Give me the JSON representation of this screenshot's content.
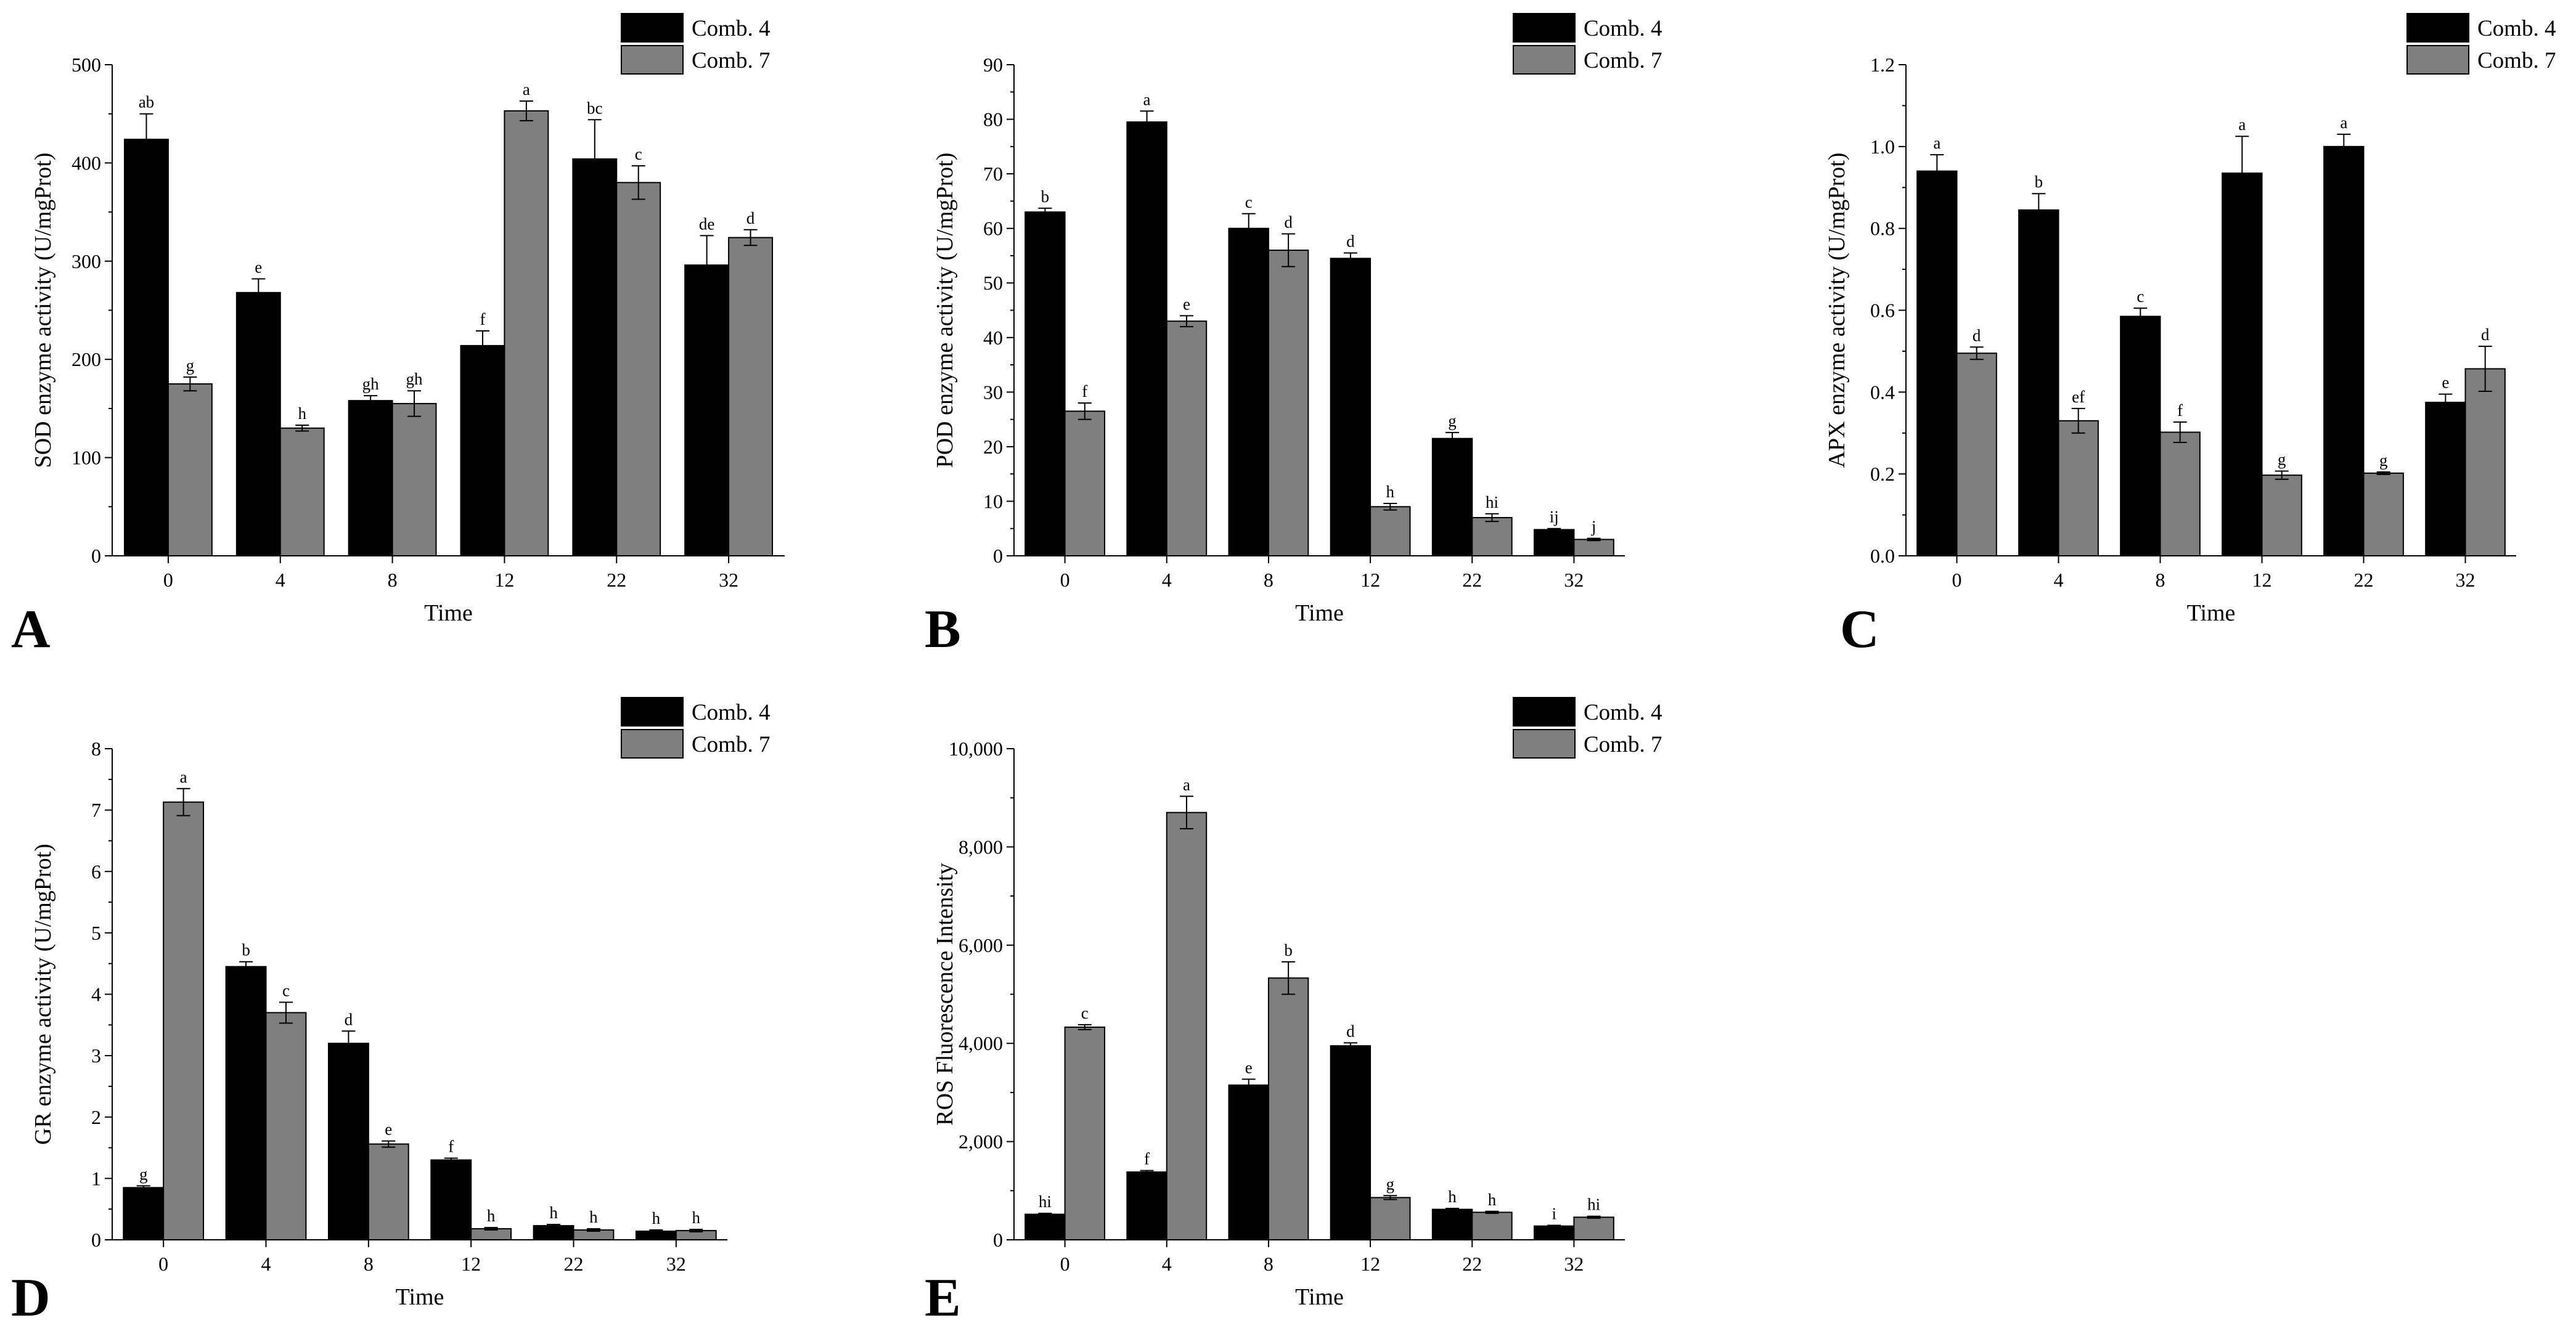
{
  "legend": {
    "series_a": "Comb. 4",
    "series_b": "Comb. 7"
  },
  "colors": {
    "series_a": "#000000",
    "series_b": "#7f7f7f",
    "axis": "#000000",
    "background": "#ffffff"
  },
  "chart_data": [
    {
      "panel": "A",
      "type": "bar",
      "xlabel": "Time",
      "ylabel": "SOD enzyme activity (U/mgProt)",
      "ylim": [
        0,
        500
      ],
      "yticks": [
        0,
        100,
        200,
        300,
        400,
        500
      ],
      "ytick_labels": [
        "0",
        "100",
        "200",
        "300",
        "400",
        "500"
      ],
      "categories": [
        "0",
        "4",
        "8",
        "12",
        "22",
        "32"
      ],
      "series": [
        {
          "name": "Comb. 4",
          "values": [
            424,
            268,
            158,
            214,
            404,
            296
          ],
          "errors": [
            26,
            14,
            5,
            15,
            40,
            30
          ],
          "labels": [
            "ab",
            "e",
            "gh",
            "f",
            "bc",
            "de"
          ]
        },
        {
          "name": "Comb. 7",
          "values": [
            175,
            130,
            155,
            453,
            380,
            324
          ],
          "errors": [
            7,
            3,
            13,
            10,
            17,
            8
          ],
          "labels": [
            "g",
            "h",
            "gh",
            "a",
            "c",
            "d"
          ]
        }
      ]
    },
    {
      "panel": "B",
      "type": "bar",
      "xlabel": "Time",
      "ylabel": "POD enzyme activity (U/mgProt)",
      "ylim": [
        0,
        90
      ],
      "yticks": [
        0,
        10,
        20,
        30,
        40,
        50,
        60,
        70,
        80,
        90
      ],
      "ytick_labels": [
        "0",
        "10",
        "20",
        "30",
        "40",
        "50",
        "60",
        "70",
        "80",
        "90"
      ],
      "categories": [
        "0",
        "4",
        "8",
        "12",
        "22",
        "32"
      ],
      "series": [
        {
          "name": "Comb. 4",
          "values": [
            63,
            79.5,
            60,
            54.5,
            21.5,
            4.8
          ],
          "errors": [
            0.7,
            2.0,
            2.7,
            1.0,
            1.1,
            0.2
          ],
          "labels": [
            "b",
            "a",
            "c",
            "d",
            "g",
            "ij"
          ]
        },
        {
          "name": "Comb. 7",
          "values": [
            26.5,
            43,
            56,
            9,
            7,
            3
          ],
          "errors": [
            1.5,
            1.0,
            3.0,
            0.6,
            0.7,
            0.2
          ],
          "labels": [
            "f",
            "e",
            "d",
            "h",
            "hi",
            "j"
          ]
        }
      ]
    },
    {
      "panel": "C",
      "type": "bar",
      "xlabel": "Time",
      "ylabel": "APX enzyme activity (U/mgProt)",
      "ylim": [
        0,
        1.2
      ],
      "yticks": [
        0,
        0.2,
        0.4,
        0.6,
        0.8,
        1.0,
        1.2
      ],
      "ytick_labels": [
        "0.0",
        "0.2",
        "0.4",
        "0.6",
        "0.8",
        "1.0",
        "1.2"
      ],
      "categories": [
        "0",
        "4",
        "8",
        "12",
        "22",
        "32"
      ],
      "series": [
        {
          "name": "Comb. 4",
          "values": [
            0.94,
            0.845,
            0.585,
            0.935,
            1.0,
            0.375
          ],
          "errors": [
            0.04,
            0.04,
            0.02,
            0.09,
            0.03,
            0.02
          ],
          "labels": [
            "a",
            "b",
            "c",
            "a",
            "a",
            "e"
          ]
        },
        {
          "name": "Comb. 7",
          "values": [
            0.495,
            0.33,
            0.302,
            0.197,
            0.202,
            0.457
          ],
          "errors": [
            0.015,
            0.03,
            0.025,
            0.01,
            0.003,
            0.055
          ],
          "labels": [
            "d",
            "ef",
            "f",
            "g",
            "g",
            "d"
          ]
        }
      ]
    },
    {
      "panel": "D",
      "type": "bar",
      "xlabel": "Time",
      "ylabel": "GR enzyme activity (U/mgProt)",
      "ylim": [
        0,
        8
      ],
      "yticks": [
        0,
        1,
        2,
        3,
        4,
        5,
        6,
        7,
        8
      ],
      "ytick_labels": [
        "0",
        "1",
        "2",
        "3",
        "4",
        "5",
        "6",
        "7",
        "8"
      ],
      "categories": [
        "0",
        "4",
        "8",
        "12",
        "22",
        "32"
      ],
      "series": [
        {
          "name": "Comb. 4",
          "values": [
            0.85,
            4.45,
            3.2,
            1.3,
            0.23,
            0.14
          ],
          "errors": [
            0.03,
            0.08,
            0.2,
            0.03,
            0.02,
            0.02
          ],
          "labels": [
            "g",
            "b",
            "d",
            "f",
            "h",
            "h"
          ]
        },
        {
          "name": "Comb. 7",
          "values": [
            7.13,
            3.7,
            1.56,
            0.18,
            0.16,
            0.15
          ],
          "errors": [
            0.22,
            0.17,
            0.05,
            0.02,
            0.02,
            0.02
          ],
          "labels": [
            "a",
            "c",
            "e",
            "h",
            "h",
            "h"
          ]
        }
      ]
    },
    {
      "panel": "E",
      "type": "bar",
      "xlabel": "Time",
      "ylabel": "ROS Fluorescence Intensity",
      "ylim": [
        0,
        10000
      ],
      "yticks": [
        0,
        2000,
        4000,
        6000,
        8000,
        10000
      ],
      "ytick_labels": [
        "0",
        "2,000",
        "4,000",
        "6,000",
        "8,000",
        "10,000"
      ],
      "categories": [
        "0",
        "4",
        "8",
        "12",
        "22",
        "32"
      ],
      "series": [
        {
          "name": "Comb. 4",
          "values": [
            520,
            1380,
            3150,
            3950,
            620,
            280
          ],
          "errors": [
            20,
            30,
            120,
            60,
            20,
            15
          ],
          "labels": [
            "hi",
            "f",
            "e",
            "d",
            "h",
            "i"
          ]
        },
        {
          "name": "Comb. 7",
          "values": [
            4330,
            8700,
            5330,
            860,
            560,
            460
          ],
          "errors": [
            50,
            330,
            330,
            40,
            20,
            20
          ],
          "labels": [
            "c",
            "a",
            "b",
            "g",
            "h",
            "hi"
          ]
        }
      ]
    }
  ]
}
